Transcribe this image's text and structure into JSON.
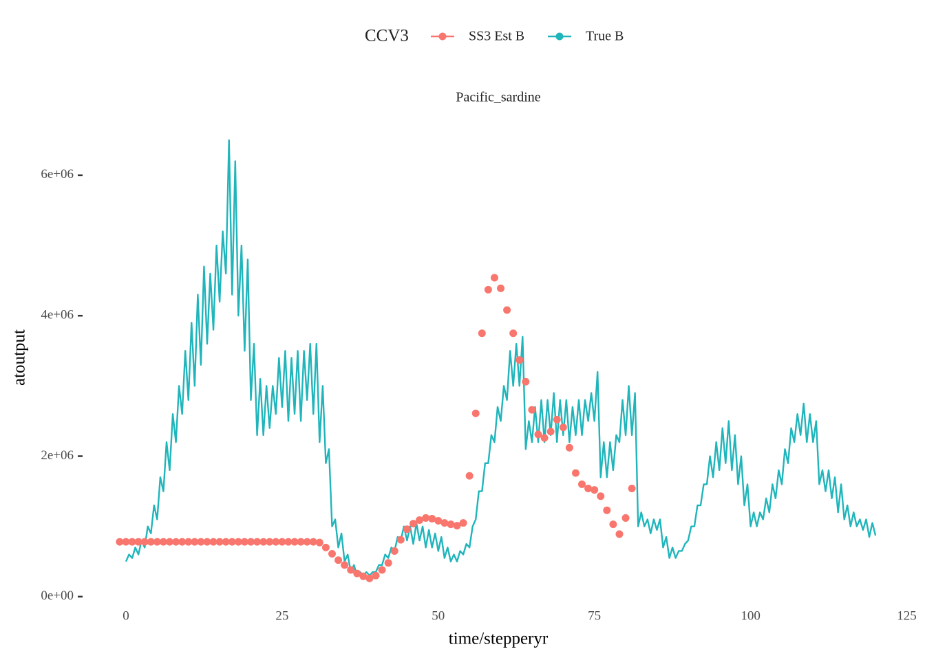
{
  "chart_data": {
    "type": "line",
    "legend_title": "CCV3",
    "legend_position": "top",
    "facet_label": "Pacific_sardine",
    "x_label": "time/stepperyr",
    "y_label": "atoutput",
    "xlim": [
      -7.05,
      126.05
    ],
    "ylim": [
      -70000,
      6870000
    ],
    "xticks": [
      0,
      25,
      50,
      75,
      100,
      125
    ],
    "yticks": [
      {
        "value": 0,
        "label": "0e+00"
      },
      {
        "value": 2000000,
        "label": "2e+06"
      },
      {
        "value": 4000000,
        "label": "4e+06"
      },
      {
        "value": 6000000,
        "label": "6e+06"
      }
    ],
    "grid": false,
    "series": [
      {
        "name": "SS3 Est B",
        "color": "#F8766D",
        "type": "scatter",
        "x": [
          -1,
          0,
          1,
          2,
          3,
          4,
          5,
          6,
          7,
          8,
          9,
          10,
          11,
          12,
          13,
          14,
          15,
          16,
          17,
          18,
          19,
          20,
          21,
          22,
          23,
          24,
          25,
          26,
          27,
          28,
          29,
          30,
          31,
          32,
          33,
          34,
          35,
          36,
          37,
          38,
          39,
          40,
          41,
          42,
          43,
          44,
          45,
          46,
          47,
          48,
          49,
          50,
          51,
          52,
          53,
          54,
          55,
          56,
          57,
          58,
          59,
          60,
          61,
          62,
          63,
          64,
          65,
          66,
          67,
          68,
          69,
          70,
          71,
          72,
          73,
          74,
          75,
          76,
          77,
          78,
          79,
          80,
          81
        ],
        "values": [
          780000,
          780000,
          780000,
          780000,
          780000,
          780000,
          780000,
          780000,
          780000,
          780000,
          780000,
          780000,
          780000,
          780000,
          780000,
          780000,
          780000,
          780000,
          780000,
          780000,
          780000,
          780000,
          780000,
          780000,
          780000,
          780000,
          780000,
          780000,
          780000,
          780000,
          780000,
          780000,
          770000,
          700000,
          610000,
          520000,
          450000,
          380000,
          330000,
          290000,
          260000,
          300000,
          380000,
          480000,
          650000,
          810000,
          960000,
          1040000,
          1090000,
          1120000,
          1110000,
          1080000,
          1050000,
          1030000,
          1010000,
          1050000,
          1720000,
          2610000,
          3750000,
          4370000,
          4540000,
          4390000,
          4080000,
          3750000,
          3370000,
          3060000,
          2660000,
          2310000,
          2260000,
          2350000,
          2520000,
          2410000,
          2120000,
          1760000,
          1600000,
          1540000,
          1520000,
          1430000,
          1230000,
          1030000,
          890000,
          1120000,
          1540000
        ]
      },
      {
        "name": "True B",
        "color": "#1FB5BB",
        "type": "line",
        "x": [
          0,
          0.5,
          1,
          1.5,
          2,
          2.5,
          3,
          3.5,
          4,
          4.5,
          5,
          5.5,
          6,
          6.5,
          7,
          7.5,
          8,
          8.5,
          9,
          9.5,
          10,
          10.5,
          11,
          11.5,
          12,
          12.5,
          13,
          13.5,
          14,
          14.5,
          15,
          15.5,
          16,
          16.5,
          17,
          17.5,
          18,
          18.5,
          19,
          19.5,
          20,
          20.5,
          21,
          21.5,
          22,
          22.5,
          23,
          23.5,
          24,
          24.5,
          25,
          25.5,
          26,
          26.5,
          27,
          27.5,
          28,
          28.5,
          29,
          29.5,
          30,
          30.5,
          31,
          31.5,
          32,
          32.5,
          33,
          33.5,
          34,
          34.5,
          35,
          35.5,
          36,
          36.5,
          37,
          37.5,
          38,
          38.5,
          39,
          39.5,
          40,
          40.5,
          41,
          41.5,
          42,
          42.5,
          43,
          43.5,
          44,
          44.5,
          45,
          45.5,
          46,
          46.5,
          47,
          47.5,
          48,
          48.5,
          49,
          49.5,
          50,
          50.5,
          51,
          51.5,
          52,
          52.5,
          53,
          53.5,
          54,
          54.5,
          55,
          55.5,
          56,
          56.5,
          57,
          57.5,
          58,
          58.5,
          59,
          59.5,
          60,
          60.5,
          61,
          61.5,
          62,
          62.5,
          63,
          63.5,
          64,
          64.5,
          65,
          65.5,
          66,
          66.5,
          67,
          67.5,
          68,
          68.5,
          69,
          69.5,
          70,
          70.5,
          71,
          71.5,
          72,
          72.5,
          73,
          73.5,
          74,
          74.5,
          75,
          75.5,
          76,
          76.5,
          77,
          77.5,
          78,
          78.5,
          79,
          79.5,
          80,
          80.5,
          81,
          81.5,
          82,
          82.5,
          83,
          83.5,
          84,
          84.5,
          85,
          85.5,
          86,
          86.5,
          87,
          87.5,
          88,
          88.5,
          89,
          89.5,
          90,
          90.5,
          91,
          91.5,
          92,
          92.5,
          93,
          93.5,
          94,
          94.5,
          95,
          95.5,
          96,
          96.5,
          97,
          97.5,
          98,
          98.5,
          99,
          99.5,
          100,
          100.5,
          101,
          101.5,
          102,
          102.5,
          103,
          103.5,
          104,
          104.5,
          105,
          105.5,
          106,
          106.5,
          107,
          107.5,
          108,
          108.5,
          109,
          109.5,
          110,
          110.5,
          111,
          111.5,
          112,
          112.5,
          113,
          113.5,
          114,
          114.5,
          115,
          115.5,
          116,
          116.5,
          117,
          117.5,
          118,
          118.5,
          119,
          119.5,
          120
        ],
        "values": [
          500000,
          600000,
          550000,
          700000,
          600000,
          800000,
          700000,
          1000000,
          900000,
          1300000,
          1100000,
          1700000,
          1500000,
          2200000,
          1800000,
          2600000,
          2200000,
          3000000,
          2600000,
          3500000,
          2800000,
          3900000,
          3000000,
          4300000,
          3300000,
          4700000,
          3600000,
          4600000,
          3800000,
          5000000,
          4200000,
          5200000,
          4600000,
          6500000,
          4300000,
          6200000,
          4000000,
          5000000,
          3500000,
          4800000,
          2800000,
          3600000,
          2300000,
          3100000,
          2300000,
          3000000,
          2400000,
          3000000,
          2600000,
          3400000,
          2700000,
          3500000,
          2500000,
          3400000,
          2600000,
          3500000,
          2500000,
          3500000,
          2800000,
          3600000,
          2600000,
          3600000,
          2200000,
          3000000,
          1900000,
          2100000,
          1000000,
          1100000,
          700000,
          900000,
          500000,
          600000,
          350000,
          450000,
          300000,
          350000,
          300000,
          350000,
          300000,
          350000,
          350000,
          450000,
          450000,
          600000,
          550000,
          700000,
          650000,
          850000,
          800000,
          1000000,
          800000,
          1000000,
          750000,
          1050000,
          800000,
          1000000,
          700000,
          950000,
          700000,
          900000,
          650000,
          850000,
          550000,
          700000,
          500000,
          600000,
          500000,
          650000,
          600000,
          750000,
          700000,
          1000000,
          1100000,
          1500000,
          1500000,
          1900000,
          1900000,
          2300000,
          2200000,
          2700000,
          2500000,
          3000000,
          2800000,
          3500000,
          3000000,
          3600000,
          3000000,
          3700000,
          2100000,
          2500000,
          2200000,
          2700000,
          2200000,
          2800000,
          2200000,
          2800000,
          2300000,
          2900000,
          2200000,
          2800000,
          2300000,
          2800000,
          2200000,
          2700000,
          2300000,
          2800000,
          2300000,
          2800000,
          2500000,
          2900000,
          2500000,
          3200000,
          1700000,
          2200000,
          1700000,
          2200000,
          1800000,
          2300000,
          2200000,
          2800000,
          2300000,
          3000000,
          2300000,
          2900000,
          1000000,
          1200000,
          1000000,
          1100000,
          900000,
          1100000,
          950000,
          1100000,
          700000,
          850000,
          550000,
          700000,
          550000,
          650000,
          650000,
          750000,
          800000,
          1000000,
          1000000,
          1300000,
          1300000,
          1600000,
          1600000,
          2000000,
          1700000,
          2200000,
          1800000,
          2400000,
          1900000,
          2500000,
          1800000,
          2300000,
          1600000,
          2000000,
          1300000,
          1600000,
          1000000,
          1200000,
          1000000,
          1200000,
          1100000,
          1400000,
          1200000,
          1600000,
          1400000,
          1800000,
          1600000,
          2100000,
          1900000,
          2400000,
          2200000,
          2600000,
          2300000,
          2750000,
          2200000,
          2600000,
          2200000,
          2500000,
          1600000,
          1800000,
          1500000,
          1800000,
          1400000,
          1700000,
          1200000,
          1600000,
          1100000,
          1300000,
          1000000,
          1200000,
          1000000,
          1100000,
          950000,
          1100000,
          850000,
          1050000,
          870000
        ]
      }
    ]
  }
}
